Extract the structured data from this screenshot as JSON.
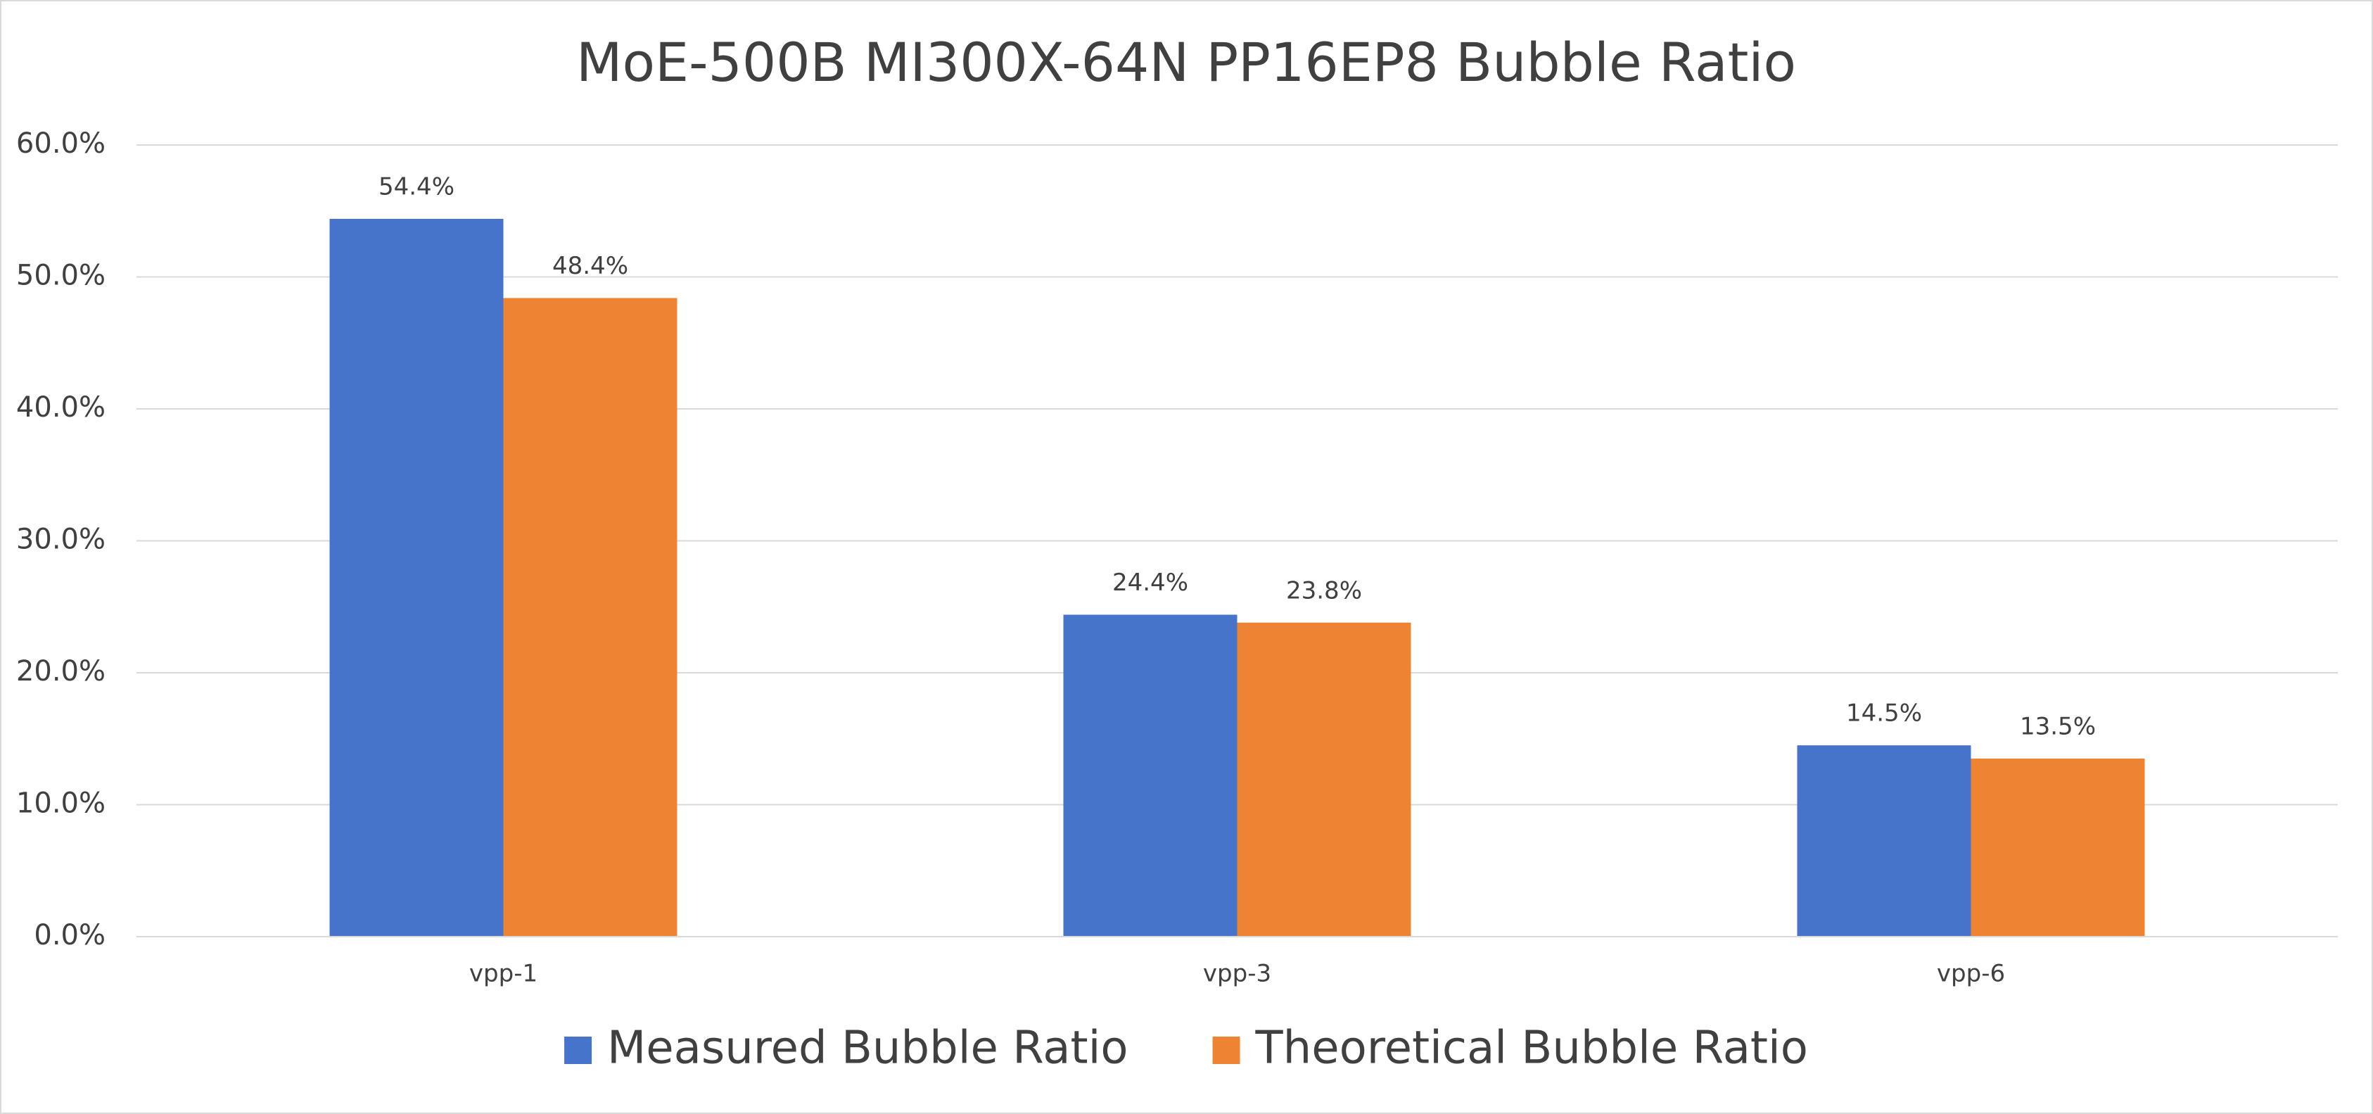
{
  "chart_data": {
    "type": "bar",
    "title": "MoE-500B MI300X-64N PP16EP8 Bubble Ratio",
    "categories": [
      "vpp-1",
      "vpp-3",
      "vpp-6"
    ],
    "series": [
      {
        "name": "Measured Bubble Ratio",
        "color": "#4774cb",
        "values": [
          54.4,
          24.4,
          14.5
        ],
        "value_labels": [
          "54.4%",
          "24.4%",
          "14.5%"
        ]
      },
      {
        "name": "Theoretical Bubble Ratio",
        "color": "#ee8432",
        "values": [
          48.4,
          23.8,
          13.5
        ],
        "value_labels": [
          "48.4%",
          "23.8%",
          "13.5%"
        ]
      }
    ],
    "ylim": [
      0,
      60
    ],
    "yticks": [
      {
        "value": 0,
        "label": "0.0%"
      },
      {
        "value": 10,
        "label": "10.0%"
      },
      {
        "value": 20,
        "label": "20.0%"
      },
      {
        "value": 30,
        "label": "30.0%"
      },
      {
        "value": 40,
        "label": "40.0%"
      },
      {
        "value": 50,
        "label": "50.0%"
      },
      {
        "value": 60,
        "label": "60.0%"
      }
    ],
    "grid": true,
    "legend": "bottom"
  }
}
